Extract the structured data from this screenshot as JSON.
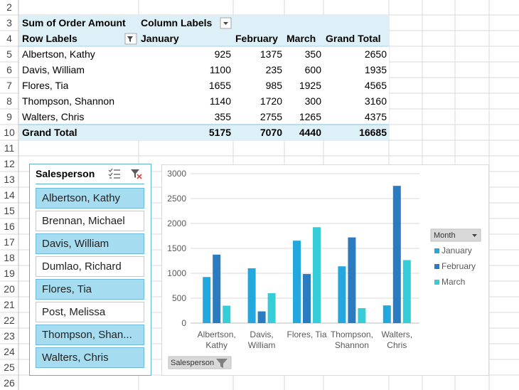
{
  "row_numbers": [
    2,
    3,
    4,
    5,
    6,
    7,
    8,
    9,
    10,
    11,
    12,
    13,
    14,
    15,
    16,
    17,
    18,
    19,
    20,
    21,
    22,
    23,
    24,
    25,
    26
  ],
  "pivot_table": {
    "value_field": "Sum of Order Amount",
    "column_labels": "Column Labels",
    "row_labels": "Row Labels",
    "columns": [
      "January",
      "February",
      "March",
      "Grand Total"
    ],
    "rows": [
      {
        "label": "Albertson, Kathy",
        "values": [
          925,
          1375,
          350,
          2650
        ]
      },
      {
        "label": "Davis, William",
        "values": [
          1100,
          235,
          600,
          1935
        ]
      },
      {
        "label": "Flores, Tia",
        "values": [
          1655,
          985,
          1925,
          4565
        ]
      },
      {
        "label": "Thompson, Shannon",
        "values": [
          1140,
          1720,
          300,
          3160
        ]
      },
      {
        "label": "Walters, Chris",
        "values": [
          355,
          2755,
          1265,
          4375
        ]
      }
    ],
    "grand_total": {
      "label": "Grand Total",
      "values": [
        5175,
        7070,
        4440,
        16685
      ]
    }
  },
  "slicer": {
    "title": "Salesperson",
    "items": [
      {
        "label": "Albertson, Kathy",
        "selected": true
      },
      {
        "label": "Brennan, Michael",
        "selected": false
      },
      {
        "label": "Davis, William",
        "selected": true
      },
      {
        "label": "Dumlao, Richard",
        "selected": false
      },
      {
        "label": "Flores, Tia",
        "selected": true
      },
      {
        "label": "Post, Melissa",
        "selected": false
      },
      {
        "label": "Thompson, Shan...",
        "selected": true
      },
      {
        "label": "Walters, Chris",
        "selected": true
      }
    ]
  },
  "chart_data": {
    "type": "bar",
    "categories": [
      "Albertson, Kathy",
      "Davis, William",
      "Flores, Tia",
      "Thompson, Shannon",
      "Walters, Chris"
    ],
    "series": [
      {
        "name": "January",
        "color": "#22a7df",
        "values": [
          925,
          1100,
          1655,
          1140,
          355
        ]
      },
      {
        "name": "February",
        "color": "#2a7bc0",
        "values": [
          1375,
          235,
          985,
          1720,
          2755
        ]
      },
      {
        "name": "March",
        "color": "#36cdd8",
        "values": [
          350,
          600,
          1925,
          300,
          1265
        ]
      }
    ],
    "ylim": [
      0,
      3000
    ],
    "yticks": [
      0,
      500,
      1000,
      1500,
      2000,
      2500,
      3000
    ],
    "grid": true,
    "legend": "right",
    "legend_title": "Month",
    "axis_field_button": "Salesperson"
  }
}
